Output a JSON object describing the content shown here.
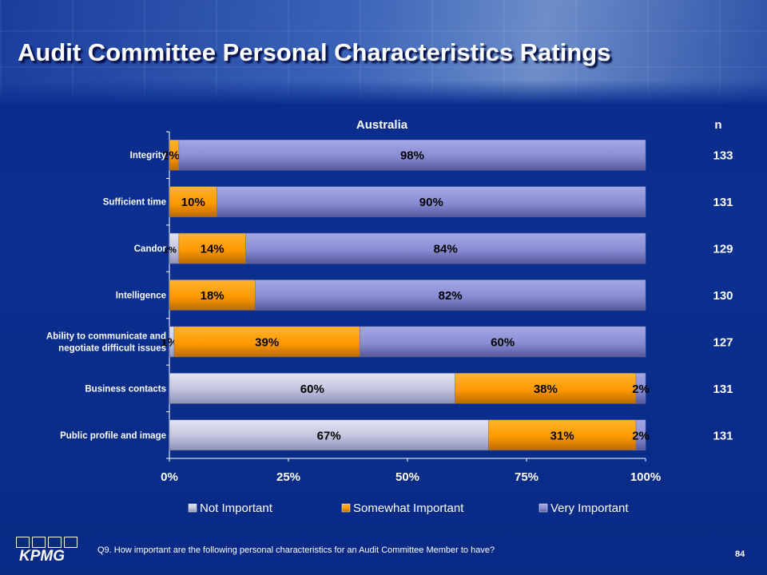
{
  "slide": {
    "title": "Audit Committee Personal Characteristics Ratings",
    "footnote": "Q9. How important are the following personal characteristics for an Audit Committee Member to have?",
    "page_number": "84",
    "logo_text": "KPMG"
  },
  "colors": {
    "not_important": "#c7c9e2",
    "somewhat_important": "#ff9900",
    "very_important": "#8b8fd6",
    "text": "#ffffff",
    "bar_label": "#000000",
    "background": "#0b3090"
  },
  "chart_data": {
    "type": "bar",
    "orientation": "horizontal",
    "stacked": true,
    "percent_stacked": true,
    "title": "Australia",
    "n_header": "n",
    "categories": [
      "Integrity",
      "Sufficient time",
      "Candor",
      "Intelligence",
      "Ability to communicate and negotiate difficult issues",
      "Business contacts",
      "Public profile and image"
    ],
    "category_lines": [
      [
        "Integrity"
      ],
      [
        "Sufficient time"
      ],
      [
        "Candor"
      ],
      [
        "Intelligence"
      ],
      [
        "Ability to communicate and",
        "negotiate difficult issues"
      ],
      [
        "Business contacts"
      ],
      [
        "Public profile and image"
      ]
    ],
    "n": [
      "133",
      "131",
      "129",
      "130",
      "127",
      "131",
      "131"
    ],
    "series": [
      {
        "name": "Not Important",
        "values": [
          0,
          0,
          2,
          0,
          1,
          60,
          67
        ],
        "labels": [
          "",
          "",
          "2%",
          "",
          "1%",
          "60%",
          "67%"
        ]
      },
      {
        "name": "Somewhat Important",
        "values": [
          2,
          10,
          14,
          18,
          39,
          38,
          31
        ],
        "labels": [
          "2%",
          "10%",
          "14%",
          "18%",
          "39%",
          "38%",
          "31%"
        ]
      },
      {
        "name": "Very Important",
        "values": [
          98,
          90,
          84,
          82,
          60,
          2,
          2
        ],
        "labels": [
          "98%",
          "90%",
          "84%",
          "82%",
          "60%",
          "2%",
          "2%"
        ]
      }
    ],
    "xlim": [
      0,
      100
    ],
    "x_ticks": [
      "0%",
      "25%",
      "50%",
      "75%",
      "100%"
    ],
    "x_tick_values": [
      0,
      25,
      50,
      75,
      100
    ],
    "legend": "bottom",
    "grid": false
  }
}
